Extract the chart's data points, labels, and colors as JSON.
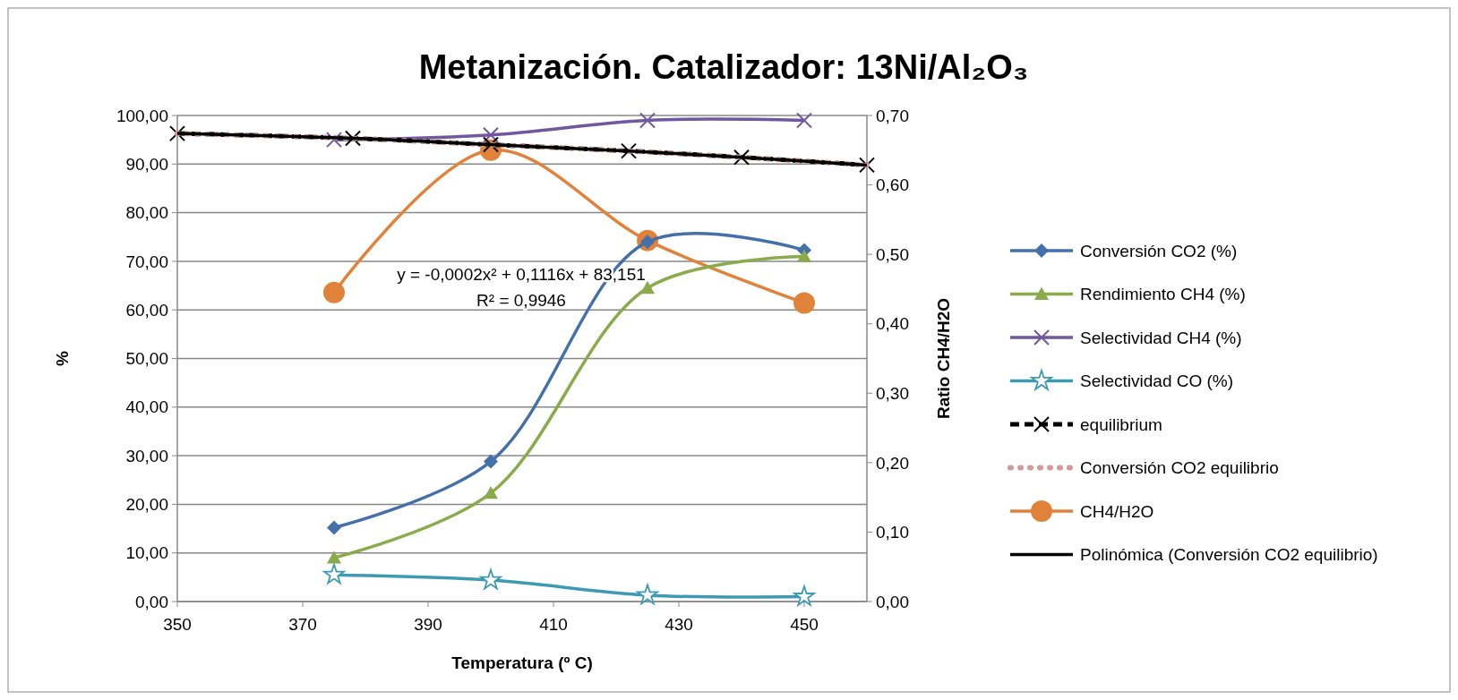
{
  "chart_data": {
    "type": "line",
    "title": "Metanización. Catalizador: 13Ni/Al₂O₃",
    "xlabel": "Temperatura (º C)",
    "ylabel": "%",
    "y2label": "Ratio CH4/H2O",
    "xlim": [
      350,
      460
    ],
    "xticks": [
      350,
      370,
      390,
      410,
      430,
      450
    ],
    "ylim": [
      0,
      100
    ],
    "yticks": [
      {
        "value": 0,
        "label": "0,00"
      },
      {
        "value": 10,
        "label": "10,00"
      },
      {
        "value": 20,
        "label": "20,00"
      },
      {
        "value": 30,
        "label": "30,00"
      },
      {
        "value": 40,
        "label": "40,00"
      },
      {
        "value": 50,
        "label": "50,00"
      },
      {
        "value": 60,
        "label": "60,00"
      },
      {
        "value": 70,
        "label": "70,00"
      },
      {
        "value": 80,
        "label": "80,00"
      },
      {
        "value": 90,
        "label": "90,00"
      },
      {
        "value": 100,
        "label": "100,00"
      }
    ],
    "y2lim": [
      0,
      0.7
    ],
    "y2ticks": [
      {
        "value": 0,
        "label": "0,00"
      },
      {
        "value": 0.1,
        "label": "0,10"
      },
      {
        "value": 0.2,
        "label": "0,20"
      },
      {
        "value": 0.3,
        "label": "0,30"
      },
      {
        "value": 0.4,
        "label": "0,40"
      },
      {
        "value": 0.5,
        "label": "0,50"
      },
      {
        "value": 0.6,
        "label": "0,60"
      },
      {
        "value": 0.7,
        "label": "0,70"
      }
    ],
    "grid": "y",
    "legend": "right",
    "series": [
      {
        "name": "Conversión CO2 (%)",
        "color": "#4470aa",
        "x": [
          375,
          400,
          425,
          450
        ],
        "values": [
          15.2,
          28.8,
          74,
          72.3
        ],
        "marker": "diamond",
        "line_style": "solid"
      },
      {
        "name": "Rendimiento CH4 (%)",
        "color": "#8aab4c",
        "x": [
          375,
          400,
          425,
          450
        ],
        "values": [
          9,
          22.3,
          64.5,
          71
        ],
        "marker": "triangle",
        "line_style": "solid"
      },
      {
        "name": "Selectividad CH4 (%)",
        "color": "#7057a0",
        "x": [
          375,
          400,
          425,
          450
        ],
        "values": [
          95,
          96,
          99,
          99
        ],
        "marker": "cross",
        "line_style": "solid"
      },
      {
        "name": "Selectividad CO (%)",
        "color": "#3d9ab3",
        "x": [
          375,
          400,
          425,
          450
        ],
        "values": [
          5.5,
          4.4,
          1.3,
          1
        ],
        "marker": "star",
        "line_style": "solid"
      },
      {
        "name": "equilibrium",
        "color": "#000000",
        "x": [
          350,
          378,
          400,
          422,
          440,
          460
        ],
        "values": [
          96.3,
          95.3,
          94,
          92.7,
          91.4,
          89.8
        ],
        "marker": "cross",
        "line_style": "dashed"
      },
      {
        "name": "Conversión CO2 equilibrio",
        "color": "#d49a9a",
        "x": [
          350,
          378,
          400,
          422,
          440,
          460
        ],
        "values": [
          96.3,
          95.3,
          94,
          92.7,
          91.4,
          89.8
        ],
        "marker": "none",
        "line_style": "dotted"
      },
      {
        "name": "CH4/H2O",
        "color": "#e0823a",
        "x": [
          375,
          400,
          425,
          450
        ],
        "values": [
          0.445,
          0.65,
          0.52,
          0.43
        ],
        "marker": "circle",
        "line_style": "solid",
        "axis": "y2"
      },
      {
        "name": "Polinómica (Conversión CO2 equilibrio)",
        "color": "#000000",
        "x": [
          350,
          378,
          400,
          422,
          440,
          460
        ],
        "values": [
          96.3,
          95.3,
          94,
          92.7,
          91.4,
          89.8
        ],
        "marker": "none",
        "line_style": "solid"
      }
    ],
    "annotations": [
      "y = -0,0002x² + 0,1116x + 83,151",
      "R² = 0,9946"
    ]
  }
}
